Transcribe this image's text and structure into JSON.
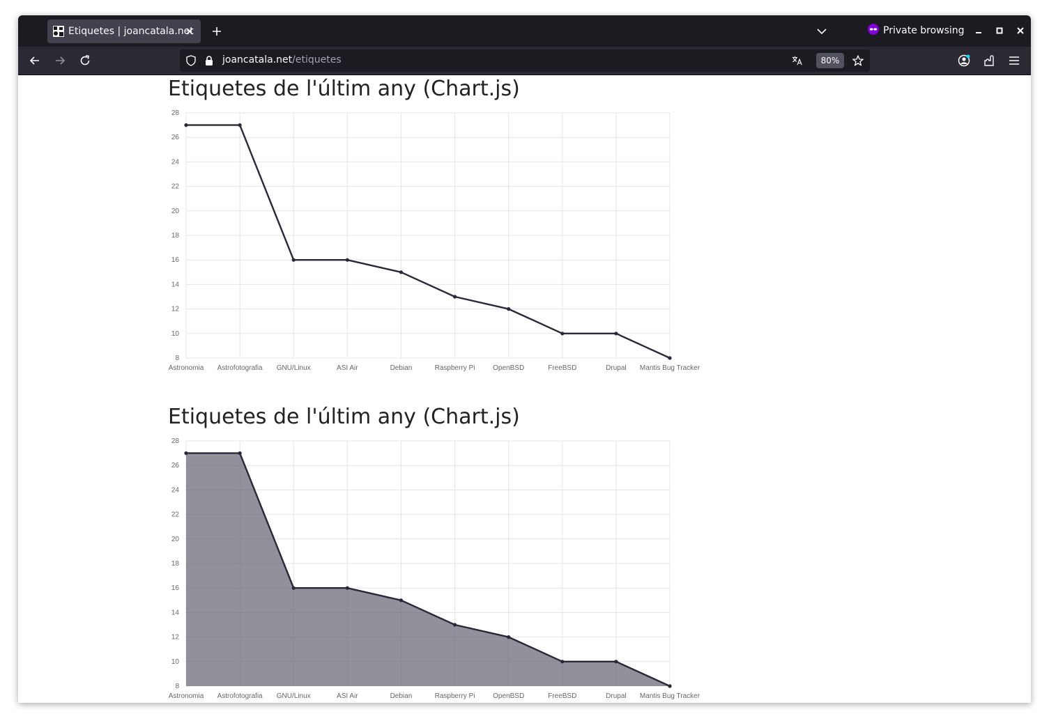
{
  "browser": {
    "tab": {
      "title": "Etiquetes | joancatala.net"
    },
    "private_label": "Private browsing",
    "url": {
      "host": "joancatala.net",
      "path": "/etiquetes"
    },
    "zoom": "80%"
  },
  "page": {
    "charts": [
      {
        "title": "Etiquetes de l'últim any (Chart.js)"
      },
      {
        "title": "Etiquetes de l'últim any (Chart.js)"
      }
    ]
  },
  "chart_data": [
    {
      "type": "line",
      "title": "",
      "categories": [
        "Astronomia",
        "Astrofotografia",
        "GNU/Linux",
        "ASI Air",
        "Debian",
        "Raspberry Pi",
        "OpenBSD",
        "FreeBSD",
        "Drupal",
        "Mantis Bug Tracker"
      ],
      "series": [
        {
          "values": [
            27,
            27,
            16,
            16,
            15,
            13,
            12,
            10,
            10,
            8
          ]
        }
      ],
      "ylim": [
        8,
        28
      ],
      "yticks": [
        8,
        10,
        12,
        14,
        16,
        18,
        20,
        22,
        24,
        26,
        28
      ],
      "grid": true,
      "fill": false,
      "line_color": "#2a2838"
    },
    {
      "type": "area",
      "title": "",
      "categories": [
        "Astronomia",
        "Astrofotografia",
        "GNU/Linux",
        "ASI Air",
        "Debian",
        "Raspberry Pi",
        "OpenBSD",
        "FreeBSD",
        "Drupal",
        "Mantis Bug Tracker"
      ],
      "series": [
        {
          "values": [
            27,
            27,
            16,
            16,
            15,
            13,
            12,
            10,
            10,
            8
          ]
        }
      ],
      "ylim": [
        8,
        28
      ],
      "yticks": [
        8,
        10,
        12,
        14,
        16,
        18,
        20,
        22,
        24,
        26,
        28
      ],
      "grid": true,
      "fill": true,
      "line_color": "#2a2838",
      "fill_color": "#5f5b6b"
    }
  ]
}
